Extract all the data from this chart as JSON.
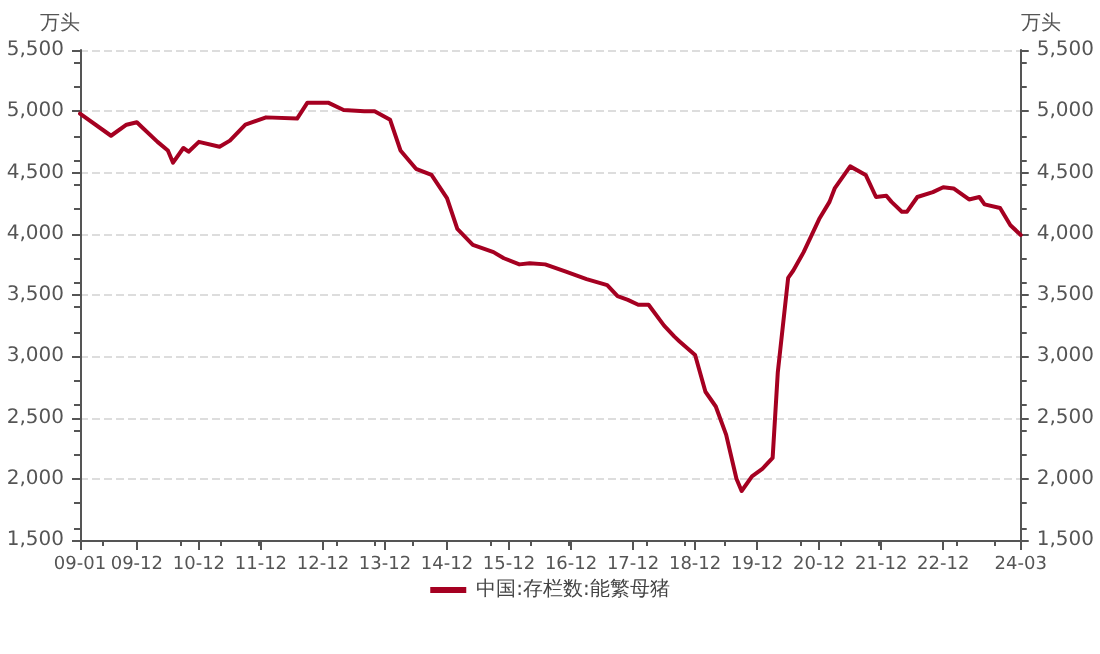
{
  "chart_data": {
    "type": "line",
    "ylabel": "万头",
    "y2label": "万头",
    "x": [
      "2009-01",
      "2009-07",
      "2009-10",
      "2009-12",
      "2010-01",
      "2010-04",
      "2010-06",
      "2010-07",
      "2010-09",
      "2010-10",
      "2010-12",
      "2011-04",
      "2011-06",
      "2011-09",
      "2012-01",
      "2012-07",
      "2012-09",
      "2013-01",
      "2013-04",
      "2013-08",
      "2013-10",
      "2014-01",
      "2014-03",
      "2014-06",
      "2014-09",
      "2014-12",
      "2015-02",
      "2015-05",
      "2015-09",
      "2015-11",
      "2016-02",
      "2016-04",
      "2016-07",
      "2016-11",
      "2017-03",
      "2017-07",
      "2017-09",
      "2017-11",
      "2018-01",
      "2018-03",
      "2018-06",
      "2018-08",
      "2018-09",
      "2018-12",
      "2019-02",
      "2019-04",
      "2019-06",
      "2019-08",
      "2019-09",
      "2019-11",
      "2020-01",
      "2020-03",
      "2020-04",
      "2020-06",
      "2020-07",
      "2020-09",
      "2020-12",
      "2021-02",
      "2021-03",
      "2021-06",
      "2021-09",
      "2021-11",
      "2022-01",
      "2022-02",
      "2022-04",
      "2022-05",
      "2022-07",
      "2022-10",
      "2022-12",
      "2023-02",
      "2023-05",
      "2023-07",
      "2023-08",
      "2023-11",
      "2024-01",
      "2024-03"
    ],
    "series": [
      {
        "name": "中国:存栏数:能繁母猪",
        "color": "#a50021",
        "values": [
          4980,
          4800,
          4890,
          4910,
          4870,
          4750,
          4680,
          4580,
          4700,
          4670,
          4750,
          4710,
          4760,
          4890,
          4950,
          4940,
          5070,
          5070,
          5010,
          5000,
          5000,
          4930,
          4680,
          4530,
          4480,
          4290,
          4040,
          3910,
          3850,
          3800,
          3750,
          3760,
          3750,
          3690,
          3630,
          3580,
          3490,
          3460,
          3420,
          3420,
          3250,
          3160,
          3120,
          3010,
          2710,
          2590,
          2360,
          2000,
          1900,
          2020,
          2080,
          2170,
          2870,
          3640,
          3700,
          3850,
          4120,
          4260,
          4370,
          4550,
          4480,
          4300,
          4310,
          4260,
          4180,
          4180,
          4300,
          4340,
          4380,
          4370,
          4280,
          4300,
          4240,
          4210,
          4070,
          3990
        ]
      }
    ],
    "xlim": [
      "2009-01",
      "2024-03"
    ],
    "xticks": [
      {
        "value": "2009-01",
        "label": "09-01"
      },
      {
        "value": "2009-12",
        "label": "09-12"
      },
      {
        "value": "2010-12",
        "label": "10-12"
      },
      {
        "value": "2011-12",
        "label": "11-12"
      },
      {
        "value": "2012-12",
        "label": "12-12"
      },
      {
        "value": "2013-12",
        "label": "13-12"
      },
      {
        "value": "2014-12",
        "label": "14-12"
      },
      {
        "value": "2015-12",
        "label": "15-12"
      },
      {
        "value": "2016-12",
        "label": "16-12"
      },
      {
        "value": "2017-12",
        "label": "17-12"
      },
      {
        "value": "2018-12",
        "label": "18-12"
      },
      {
        "value": "2019-12",
        "label": "19-12"
      },
      {
        "value": "2020-12",
        "label": "20-12"
      },
      {
        "value": "2021-12",
        "label": "21-12"
      },
      {
        "value": "2022-12",
        "label": "22-12"
      },
      {
        "value": "2024-03",
        "label": "24-03"
      }
    ],
    "ylim": [
      1500,
      5500
    ],
    "yticks": [
      {
        "value": 1500,
        "label": "1,500"
      },
      {
        "value": 2000,
        "label": "2,000"
      },
      {
        "value": 2500,
        "label": "2,500"
      },
      {
        "value": 3000,
        "label": "3,000"
      },
      {
        "value": 3500,
        "label": "3,500"
      },
      {
        "value": 4000,
        "label": "4,000"
      },
      {
        "value": 4500,
        "label": "4,500"
      },
      {
        "value": 5000,
        "label": "5,000"
      },
      {
        "value": 5500,
        "label": "5,500"
      }
    ],
    "y2lim": [
      1500,
      5500
    ],
    "y2ticks": [
      {
        "value": 1500,
        "label": "1,500"
      },
      {
        "value": 2000,
        "label": "2,000"
      },
      {
        "value": 2500,
        "label": "2,500"
      },
      {
        "value": 3000,
        "label": "3,000"
      },
      {
        "value": 3500,
        "label": "3,500"
      },
      {
        "value": 4000,
        "label": "4,000"
      },
      {
        "value": 4500,
        "label": "4,500"
      },
      {
        "value": 5000,
        "label": "5,000"
      },
      {
        "value": 5500,
        "label": "5,500"
      }
    ],
    "grid": "y",
    "legend": "bottom",
    "marker": "none",
    "line_style": "solid"
  }
}
